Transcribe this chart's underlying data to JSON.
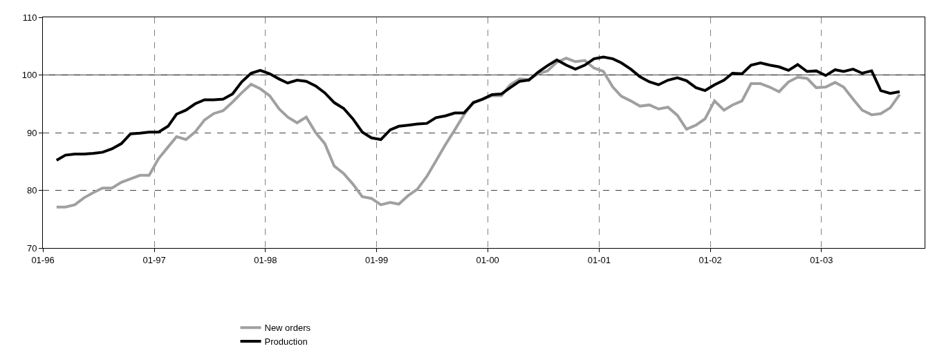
{
  "chart_data": {
    "type": "line",
    "x": [
      "1996-02-15",
      "1996-03-15",
      "1996-04-15",
      "1996-05-15",
      "1996-06-15",
      "1996-07-15",
      "1996-08-15",
      "1996-09-15",
      "1996-10-15",
      "1996-11-15",
      "1996-12-15",
      "1997-01-15",
      "1997-02-15",
      "1997-03-15",
      "1997-04-15",
      "1997-05-15",
      "1997-06-15",
      "1997-07-15",
      "1997-08-15",
      "1997-09-15",
      "1997-10-15",
      "1997-11-15",
      "1997-12-15",
      "1998-01-15",
      "1998-02-15",
      "1998-03-15",
      "1998-04-15",
      "1998-05-15",
      "1998-06-15",
      "1998-07-15",
      "1998-08-15",
      "1998-09-15",
      "1998-10-15",
      "1998-11-15",
      "1998-12-15",
      "1999-01-15",
      "1999-02-15",
      "1999-03-15",
      "1999-04-15",
      "1999-05-15",
      "1999-06-15",
      "1999-07-15",
      "1999-08-15",
      "1999-09-15",
      "1999-10-15",
      "1999-11-15",
      "1999-12-15",
      "2000-01-15",
      "2000-02-15",
      "2000-03-15",
      "2000-04-15",
      "2000-05-15",
      "2000-06-15",
      "2000-07-15",
      "2000-08-15",
      "2000-09-15",
      "2000-10-15",
      "2000-11-15",
      "2000-12-15",
      "2001-01-15",
      "2001-02-15",
      "2001-03-15",
      "2001-04-15",
      "2001-05-15",
      "2001-06-15",
      "2001-07-15",
      "2001-08-15",
      "2001-09-15",
      "2001-10-15",
      "2001-11-15",
      "2001-12-15",
      "2002-01-15",
      "2002-02-15",
      "2002-03-15",
      "2002-04-15",
      "2002-05-15",
      "2002-06-15",
      "2002-07-15",
      "2002-08-15",
      "2002-09-15",
      "2002-10-15",
      "2002-11-15",
      "2002-12-15",
      "2003-01-15",
      "2003-02-15",
      "2003-03-15",
      "2003-04-15",
      "2003-05-15",
      "2003-06-15",
      "2003-07-15",
      "2003-08-15",
      "2003-09-15"
    ],
    "series": [
      {
        "name": "New orders",
        "color": "#a0a0a0",
        "values": [
          77.1,
          77.1,
          77.5,
          78.7,
          79.6,
          80.4,
          80.4,
          81.4,
          82.0,
          82.6,
          82.6,
          85.5,
          87.5,
          89.3,
          88.8,
          90.1,
          92.2,
          93.3,
          93.8,
          95.3,
          96.9,
          98.4,
          97.6,
          96.4,
          94.1,
          92.7,
          91.7,
          92.7,
          90.0,
          88.1,
          84.2,
          82.9,
          81.1,
          78.9,
          78.6,
          77.5,
          77.9,
          77.6,
          79.1,
          80.2,
          82.4,
          85.1,
          87.9,
          90.5,
          93.1,
          95.3,
          95.8,
          96.4,
          96.4,
          98.3,
          99.3,
          99.2,
          100.2,
          100.7,
          102.2,
          102.9,
          102.3,
          102.5,
          101.2,
          100.6,
          97.9,
          96.3,
          95.5,
          94.6,
          94.8,
          94.1,
          94.4,
          93.0,
          90.6,
          91.3,
          92.4,
          95.5,
          93.9,
          94.8,
          95.5,
          98.5,
          98.5,
          97.9,
          97.1,
          98.8,
          99.6,
          99.4,
          97.8,
          97.9,
          98.7,
          97.9,
          95.8,
          93.9,
          93.1,
          93.3,
          94.3,
          96.6
        ]
      },
      {
        "name": "Production",
        "color": "#000000",
        "values": [
          85.2,
          86.1,
          86.3,
          86.3,
          86.4,
          86.6,
          87.2,
          88.1,
          89.8,
          89.9,
          90.1,
          90.1,
          91.1,
          93.2,
          93.9,
          95.0,
          95.7,
          95.7,
          95.8,
          96.7,
          98.8,
          100.3,
          100.8,
          100.2,
          99.3,
          98.6,
          99.1,
          98.9,
          98.1,
          96.9,
          95.2,
          94.2,
          92.4,
          90.1,
          89.1,
          88.8,
          90.5,
          91.1,
          91.3,
          91.5,
          91.6,
          92.6,
          92.9,
          93.4,
          93.4,
          95.2,
          95.8,
          96.6,
          96.7,
          97.8,
          98.9,
          99.1,
          100.5,
          101.6,
          102.6,
          101.7,
          101.0,
          101.7,
          102.8,
          103.1,
          102.8,
          102.1,
          101.0,
          99.7,
          98.8,
          98.3,
          99.1,
          99.5,
          99.0,
          97.8,
          97.3,
          98.3,
          99.1,
          100.3,
          100.2,
          101.7,
          102.1,
          101.7,
          101.4,
          100.8,
          101.8,
          100.6,
          100.7,
          99.9,
          100.9,
          100.6,
          101.0,
          100.3,
          100.7,
          97.3,
          96.8,
          97.1
        ]
      }
    ],
    "xlim": [
      "1996-01-01",
      "2003-12-06"
    ],
    "xticks": [
      {
        "value": "1996-01-01",
        "label": "01-96"
      },
      {
        "value": "1997-01-01",
        "label": "01-97"
      },
      {
        "value": "1998-01-01",
        "label": "01-98"
      },
      {
        "value": "1999-01-01",
        "label": "01-99"
      },
      {
        "value": "2000-01-01",
        "label": "01-00"
      },
      {
        "value": "2001-01-01",
        "label": "01-01"
      },
      {
        "value": "2002-01-01",
        "label": "01-02"
      },
      {
        "value": "2003-01-01",
        "label": "01-03"
      }
    ],
    "ylim": [
      70,
      110
    ],
    "yticks": [
      70,
      80,
      90,
      100,
      110
    ],
    "grid": true,
    "ref_lines": [
      {
        "axis": "y",
        "value": 100,
        "color": "#000000",
        "line_style": "solid"
      }
    ],
    "legend": "bottom",
    "marker": "none",
    "line_style": "solid"
  }
}
